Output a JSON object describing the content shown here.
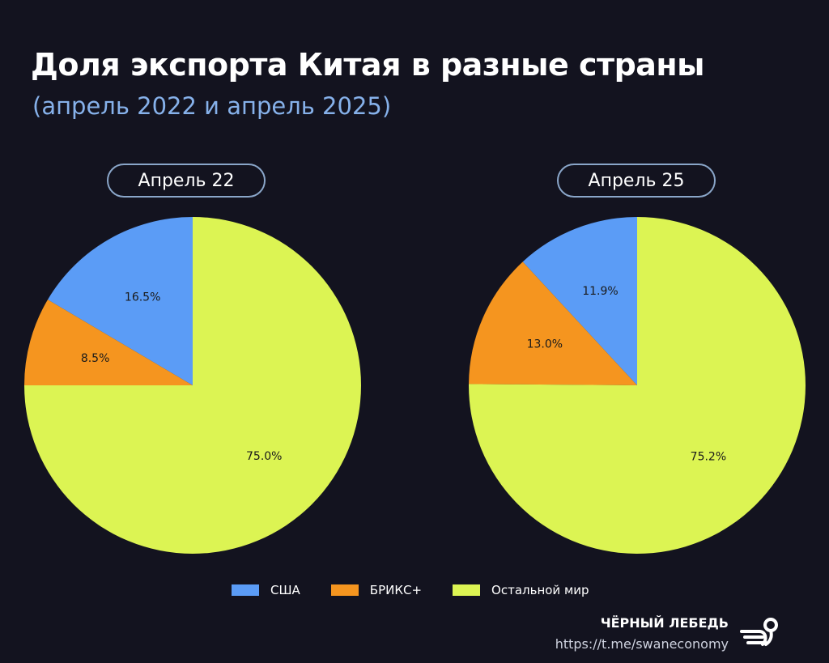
{
  "header": {
    "title": "Доля экспорта Китая в разные страны",
    "subtitle": "(апрель 2022 и апрель 2025)"
  },
  "colors": {
    "usa": "#5b9cf6",
    "brics": "#f5951f",
    "rest": "#dcf453",
    "subtitle": "#86b1ea",
    "background": "#13131f"
  },
  "chart_data": [
    {
      "type": "pie",
      "title": "Апрель 22",
      "labels": [
        "США",
        "БРИКС+",
        "Остальной мир"
      ],
      "values": [
        16.5,
        8.5,
        75.0
      ],
      "value_labels": [
        "16.5%",
        "8.5%",
        "75.0%"
      ],
      "start": "top",
      "direction": "counterclockwise"
    },
    {
      "type": "pie",
      "title": "Апрель 25",
      "labels": [
        "США",
        "БРИКС+",
        "Остальной мир"
      ],
      "values": [
        11.9,
        13.0,
        75.2
      ],
      "value_labels": [
        "11.9%",
        "13.0%",
        "75.2%"
      ],
      "start": "top",
      "direction": "counterclockwise"
    }
  ],
  "legend": {
    "placement": "bottom-center",
    "items": [
      {
        "label": "США",
        "color": "#5b9cf6"
      },
      {
        "label": "БРИКС+",
        "color": "#f5951f"
      },
      {
        "label": "Остальной мир",
        "color": "#dcf453"
      }
    ]
  },
  "brand": {
    "name": "ЧЁРНЫЙ ЛЕБЕДЬ",
    "url": "https://t.me/swaneconomy",
    "logo_icon": "swan-logo-icon"
  }
}
